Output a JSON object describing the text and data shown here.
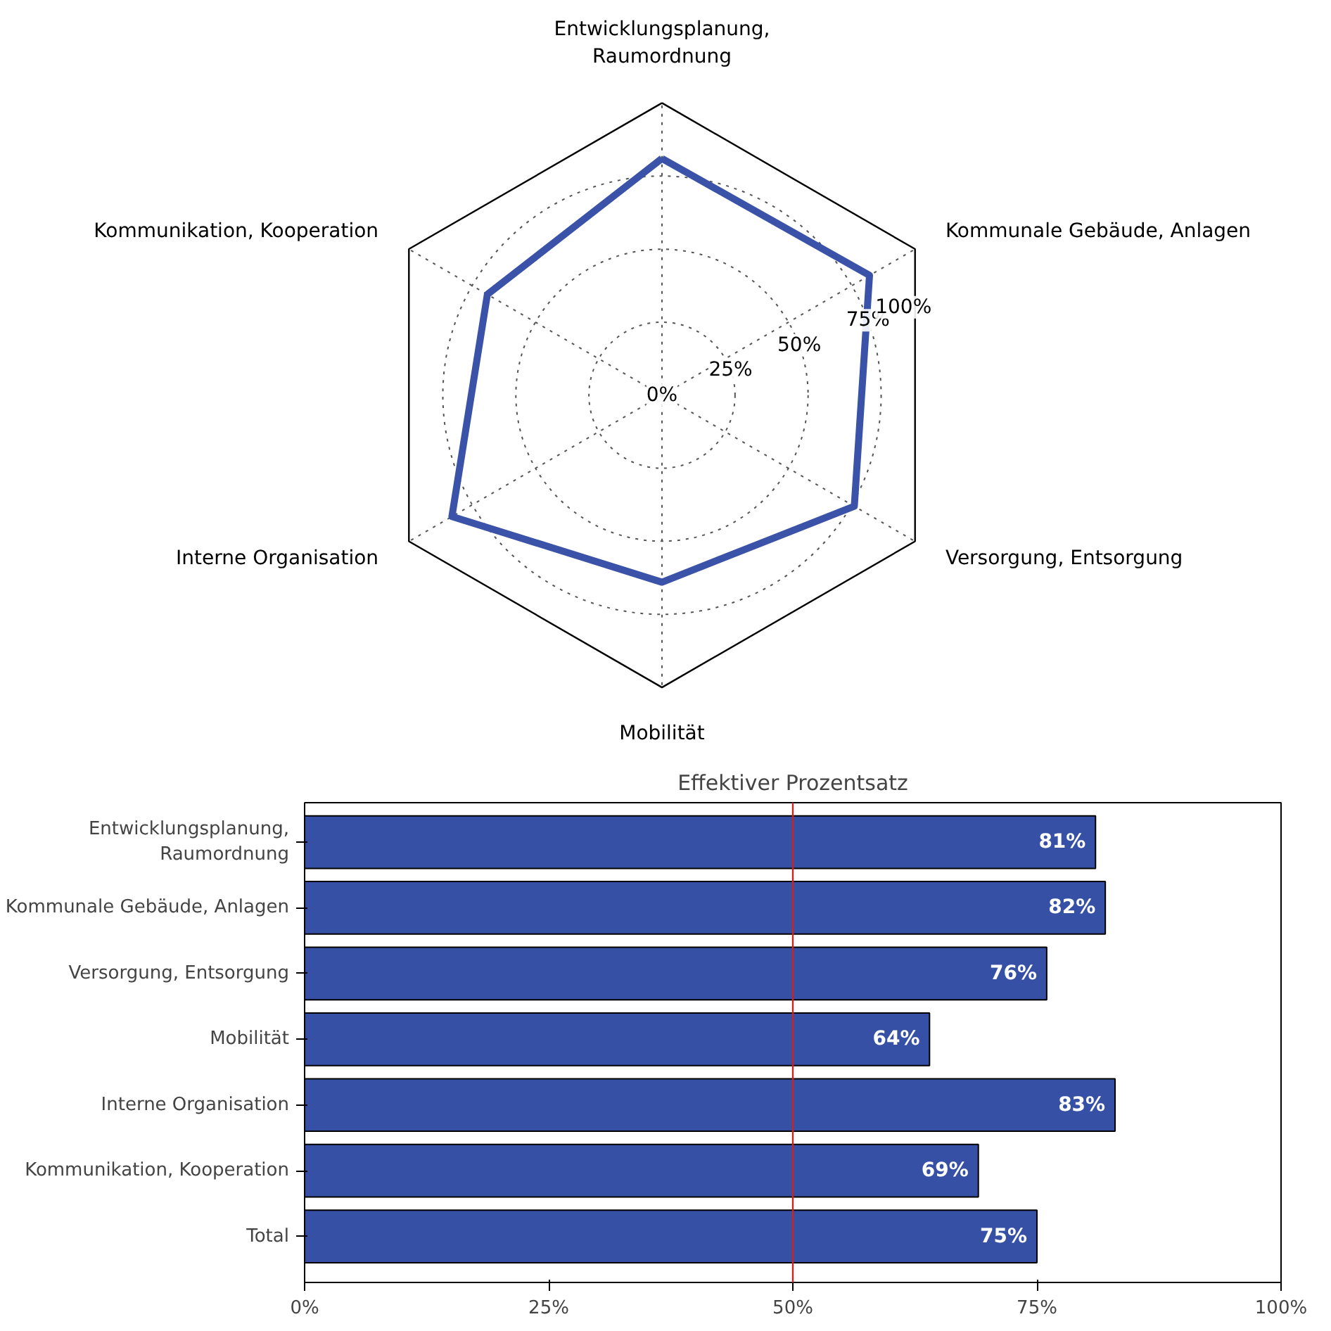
{
  "chart_data": [
    {
      "type": "radar",
      "categories": [
        "Entwicklungsplanung,\nRaumordnung",
        "Kommunale Gebäude, Anlagen",
        "Versorgung, Entsorgung",
        "Mobilität",
        "Interne Organisation",
        "Kommunikation, Kooperation"
      ],
      "series": [
        {
          "color": "#3a52a8",
          "values": [
            81,
            82,
            76,
            64,
            83,
            69
          ]
        }
      ],
      "ylim": [
        0,
        100
      ],
      "yticks": [
        {
          "value": 0,
          "label": "0%"
        },
        {
          "value": 25,
          "label": "25%"
        },
        {
          "value": 50,
          "label": "50%"
        },
        {
          "value": 75,
          "label": "75%"
        },
        {
          "value": 100,
          "label": "100%"
        }
      ],
      "grid": true,
      "line_style": "solid",
      "marker": "none"
    },
    {
      "type": "bar",
      "orientation": "horizontal",
      "title": "Effektiver Prozentsatz",
      "categories": [
        "Entwicklungsplanung,\nRaumordnung",
        "Kommunale Gebäude, Anlagen",
        "Versorgung, Entsorgung",
        "Mobilität",
        "Interne Organisation",
        "Kommunikation, Kooperation",
        "Total"
      ],
      "values": [
        81,
        82,
        76,
        64,
        83,
        69,
        75
      ],
      "color": "#3650a5",
      "value_labels": [
        "81%",
        "82%",
        "76%",
        "64%",
        "83%",
        "69%",
        "75%"
      ],
      "xlim": [
        0,
        100
      ],
      "xticks": [
        {
          "value": 0,
          "label": "0%"
        },
        {
          "value": 25,
          "label": "25%"
        },
        {
          "value": 50,
          "label": "50%"
        },
        {
          "value": 75,
          "label": "75%"
        },
        {
          "value": 100,
          "label": "100%"
        }
      ],
      "ref_lines": [
        {
          "axis": "x",
          "value": 50,
          "color": "#cc2222"
        }
      ],
      "grid": false
    }
  ]
}
